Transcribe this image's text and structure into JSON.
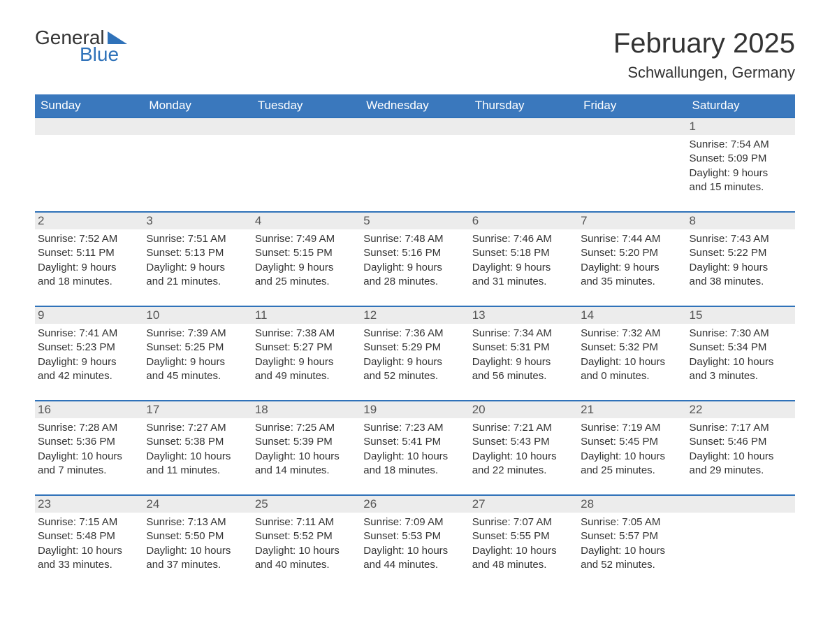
{
  "logo": {
    "word1": "General",
    "word2": "Blue"
  },
  "title": "February 2025",
  "location": "Schwallungen, Germany",
  "colors": {
    "header_bg": "#3a78bd",
    "header_text": "#ffffff",
    "row_divider": "#2f72b9",
    "daynum_bg": "#ececec",
    "text": "#333333",
    "logo_blue": "#2f72b9"
  },
  "day_headers": [
    "Sunday",
    "Monday",
    "Tuesday",
    "Wednesday",
    "Thursday",
    "Friday",
    "Saturday"
  ],
  "weeks": [
    [
      null,
      null,
      null,
      null,
      null,
      null,
      {
        "n": "1",
        "sunrise": "Sunrise: 7:54 AM",
        "sunset": "Sunset: 5:09 PM",
        "dl1": "Daylight: 9 hours",
        "dl2": "and 15 minutes."
      }
    ],
    [
      {
        "n": "2",
        "sunrise": "Sunrise: 7:52 AM",
        "sunset": "Sunset: 5:11 PM",
        "dl1": "Daylight: 9 hours",
        "dl2": "and 18 minutes."
      },
      {
        "n": "3",
        "sunrise": "Sunrise: 7:51 AM",
        "sunset": "Sunset: 5:13 PM",
        "dl1": "Daylight: 9 hours",
        "dl2": "and 21 minutes."
      },
      {
        "n": "4",
        "sunrise": "Sunrise: 7:49 AM",
        "sunset": "Sunset: 5:15 PM",
        "dl1": "Daylight: 9 hours",
        "dl2": "and 25 minutes."
      },
      {
        "n": "5",
        "sunrise": "Sunrise: 7:48 AM",
        "sunset": "Sunset: 5:16 PM",
        "dl1": "Daylight: 9 hours",
        "dl2": "and 28 minutes."
      },
      {
        "n": "6",
        "sunrise": "Sunrise: 7:46 AM",
        "sunset": "Sunset: 5:18 PM",
        "dl1": "Daylight: 9 hours",
        "dl2": "and 31 minutes."
      },
      {
        "n": "7",
        "sunrise": "Sunrise: 7:44 AM",
        "sunset": "Sunset: 5:20 PM",
        "dl1": "Daylight: 9 hours",
        "dl2": "and 35 minutes."
      },
      {
        "n": "8",
        "sunrise": "Sunrise: 7:43 AM",
        "sunset": "Sunset: 5:22 PM",
        "dl1": "Daylight: 9 hours",
        "dl2": "and 38 minutes."
      }
    ],
    [
      {
        "n": "9",
        "sunrise": "Sunrise: 7:41 AM",
        "sunset": "Sunset: 5:23 PM",
        "dl1": "Daylight: 9 hours",
        "dl2": "and 42 minutes."
      },
      {
        "n": "10",
        "sunrise": "Sunrise: 7:39 AM",
        "sunset": "Sunset: 5:25 PM",
        "dl1": "Daylight: 9 hours",
        "dl2": "and 45 minutes."
      },
      {
        "n": "11",
        "sunrise": "Sunrise: 7:38 AM",
        "sunset": "Sunset: 5:27 PM",
        "dl1": "Daylight: 9 hours",
        "dl2": "and 49 minutes."
      },
      {
        "n": "12",
        "sunrise": "Sunrise: 7:36 AM",
        "sunset": "Sunset: 5:29 PM",
        "dl1": "Daylight: 9 hours",
        "dl2": "and 52 minutes."
      },
      {
        "n": "13",
        "sunrise": "Sunrise: 7:34 AM",
        "sunset": "Sunset: 5:31 PM",
        "dl1": "Daylight: 9 hours",
        "dl2": "and 56 minutes."
      },
      {
        "n": "14",
        "sunrise": "Sunrise: 7:32 AM",
        "sunset": "Sunset: 5:32 PM",
        "dl1": "Daylight: 10 hours",
        "dl2": "and 0 minutes."
      },
      {
        "n": "15",
        "sunrise": "Sunrise: 7:30 AM",
        "sunset": "Sunset: 5:34 PM",
        "dl1": "Daylight: 10 hours",
        "dl2": "and 3 minutes."
      }
    ],
    [
      {
        "n": "16",
        "sunrise": "Sunrise: 7:28 AM",
        "sunset": "Sunset: 5:36 PM",
        "dl1": "Daylight: 10 hours",
        "dl2": "and 7 minutes."
      },
      {
        "n": "17",
        "sunrise": "Sunrise: 7:27 AM",
        "sunset": "Sunset: 5:38 PM",
        "dl1": "Daylight: 10 hours",
        "dl2": "and 11 minutes."
      },
      {
        "n": "18",
        "sunrise": "Sunrise: 7:25 AM",
        "sunset": "Sunset: 5:39 PM",
        "dl1": "Daylight: 10 hours",
        "dl2": "and 14 minutes."
      },
      {
        "n": "19",
        "sunrise": "Sunrise: 7:23 AM",
        "sunset": "Sunset: 5:41 PM",
        "dl1": "Daylight: 10 hours",
        "dl2": "and 18 minutes."
      },
      {
        "n": "20",
        "sunrise": "Sunrise: 7:21 AM",
        "sunset": "Sunset: 5:43 PM",
        "dl1": "Daylight: 10 hours",
        "dl2": "and 22 minutes."
      },
      {
        "n": "21",
        "sunrise": "Sunrise: 7:19 AM",
        "sunset": "Sunset: 5:45 PM",
        "dl1": "Daylight: 10 hours",
        "dl2": "and 25 minutes."
      },
      {
        "n": "22",
        "sunrise": "Sunrise: 7:17 AM",
        "sunset": "Sunset: 5:46 PM",
        "dl1": "Daylight: 10 hours",
        "dl2": "and 29 minutes."
      }
    ],
    [
      {
        "n": "23",
        "sunrise": "Sunrise: 7:15 AM",
        "sunset": "Sunset: 5:48 PM",
        "dl1": "Daylight: 10 hours",
        "dl2": "and 33 minutes."
      },
      {
        "n": "24",
        "sunrise": "Sunrise: 7:13 AM",
        "sunset": "Sunset: 5:50 PM",
        "dl1": "Daylight: 10 hours",
        "dl2": "and 37 minutes."
      },
      {
        "n": "25",
        "sunrise": "Sunrise: 7:11 AM",
        "sunset": "Sunset: 5:52 PM",
        "dl1": "Daylight: 10 hours",
        "dl2": "and 40 minutes."
      },
      {
        "n": "26",
        "sunrise": "Sunrise: 7:09 AM",
        "sunset": "Sunset: 5:53 PM",
        "dl1": "Daylight: 10 hours",
        "dl2": "and 44 minutes."
      },
      {
        "n": "27",
        "sunrise": "Sunrise: 7:07 AM",
        "sunset": "Sunset: 5:55 PM",
        "dl1": "Daylight: 10 hours",
        "dl2": "and 48 minutes."
      },
      {
        "n": "28",
        "sunrise": "Sunrise: 7:05 AM",
        "sunset": "Sunset: 5:57 PM",
        "dl1": "Daylight: 10 hours",
        "dl2": "and 52 minutes."
      },
      null
    ]
  ]
}
